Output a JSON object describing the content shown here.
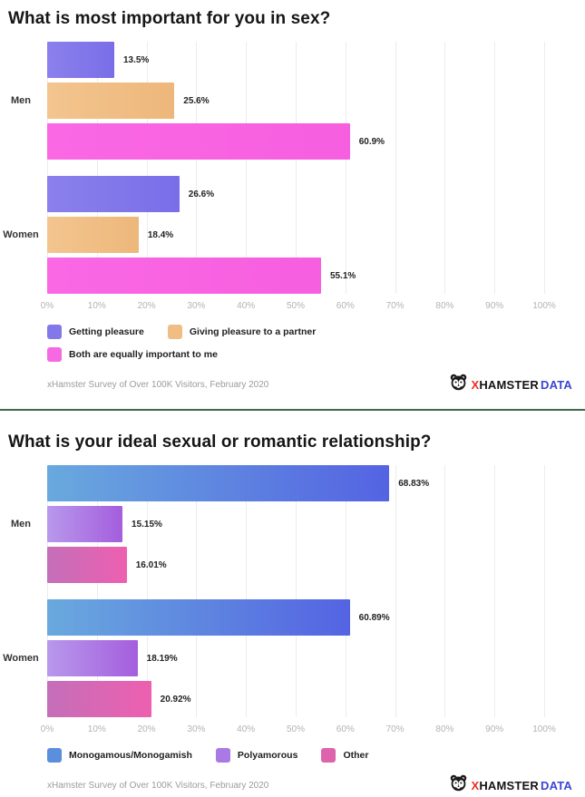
{
  "page": {
    "background": "#ffffff",
    "divider_color": "#41684b"
  },
  "logo": {
    "x": "X",
    "hamster": "HAMSTER",
    "data": "DATA",
    "x_color": "#ee2d24",
    "hamster_color": "#141414",
    "data_color": "#3a45d1"
  },
  "chart_data": [
    {
      "type": "bar",
      "orientation": "horizontal",
      "title": "What is most important for you in sex?",
      "categories": [
        "Men",
        "Women"
      ],
      "series": [
        {
          "name": "Getting pleasure",
          "values": [
            13.5,
            26.6
          ],
          "labels": [
            "13.5%",
            "26.6%"
          ],
          "color_from": "#8b80ec",
          "color_to": "#7a6ee8",
          "legend_color": "#8278ea"
        },
        {
          "name": "Giving pleasure to a partner",
          "values": [
            25.6,
            18.4
          ],
          "labels": [
            "25.6%",
            "18.4%"
          ],
          "color_from": "#f3c58f",
          "color_to": "#edb77b",
          "legend_color": "#f0bd84"
        },
        {
          "name": "Both are equally important to me",
          "values": [
            60.9,
            55.1
          ],
          "labels": [
            "60.9%",
            "55.1%"
          ],
          "color_from": "#fa68e4",
          "color_to": "#f65fe0",
          "legend_color": "#f569e2"
        }
      ],
      "xlim": [
        0,
        100
      ],
      "x_ticks": [
        "0%",
        "10%",
        "20%",
        "30%",
        "40%",
        "50%",
        "60%",
        "70%",
        "80%",
        "90%",
        "100%"
      ],
      "grid": true,
      "legend_position": "bottom",
      "source": "xHamster Survey of Over 100K Visitors, February 2020"
    },
    {
      "type": "bar",
      "orientation": "horizontal",
      "title": "What is your ideal sexual or romantic relationship?",
      "categories": [
        "Men",
        "Women"
      ],
      "series": [
        {
          "name": "Monogamous/Monogamish",
          "values": [
            68.83,
            60.89
          ],
          "labels": [
            "68.83%",
            "60.89%"
          ],
          "color_from": "#69a9de",
          "color_to": "#5463e2",
          "legend_color": "#5c8ede"
        },
        {
          "name": "Polyamorous",
          "values": [
            15.15,
            18.19
          ],
          "labels": [
            "15.15%",
            "18.19%"
          ],
          "color_from": "#b898ec",
          "color_to": "#a45edd",
          "legend_color": "#a97ae4"
        },
        {
          "name": "Other",
          "values": [
            16.01,
            20.92
          ],
          "labels": [
            "16.01%",
            "20.92%"
          ],
          "color_from": "#c46fb9",
          "color_to": "#ee5fb0",
          "legend_color": "#dd64ac"
        }
      ],
      "xlim": [
        0,
        100
      ],
      "x_ticks": [
        "0%",
        "10%",
        "20%",
        "30%",
        "40%",
        "50%",
        "60%",
        "70%",
        "80%",
        "90%",
        "100%"
      ],
      "grid": true,
      "legend_position": "bottom",
      "source": "xHamster Survey of Over 100K Visitors, February 2020"
    }
  ]
}
